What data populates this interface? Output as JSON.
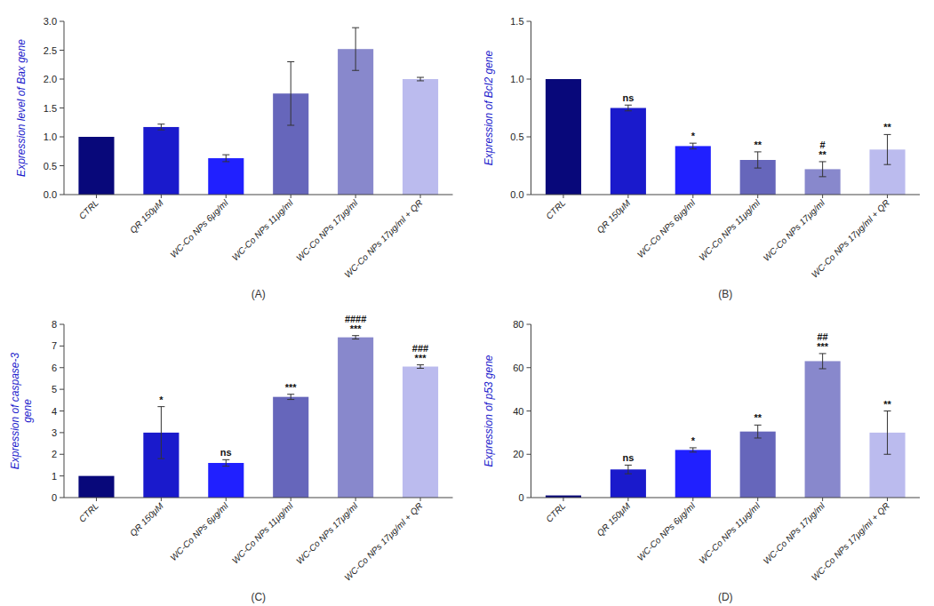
{
  "chart_data": [
    {
      "type": "bar",
      "categories": [
        "CTRL",
        "QR 150μM",
        "WC-Co NPs 6μg/ml",
        "WC-Co NPs 11μg/ml",
        "WC-Co NPs 17μg/ml",
        "WC-Co NPs 17μg/ml + QR"
      ],
      "values": [
        1.0,
        1.17,
        0.63,
        1.75,
        2.52,
        2.0
      ],
      "errors": [
        0.0,
        0.05,
        0.06,
        0.55,
        0.37,
        0.03
      ],
      "colors": [
        "#08087A",
        "#1A1ACC",
        "#2020FF",
        "#6666BB",
        "#8888CC",
        "#BBBBEE"
      ],
      "ylabel": "Expression level of Bax gene",
      "xlabel": "(A)",
      "ylim": [
        0,
        3.0
      ],
      "yticks": [
        {
          "value": 0,
          "label": "0.0"
        },
        0.5,
        {
          "value": 1,
          "label": "1.0"
        },
        1.5,
        {
          "value": 2,
          "label": "2.0"
        },
        2.5,
        {
          "value": 3,
          "label": "3.0"
        }
      ],
      "grid": false
    },
    {
      "type": "bar",
      "categories": [
        "CTRL",
        "QR 150μM",
        "WC-Co NPs 6μg/ml",
        "WC-Co NPs 11μg/ml",
        "WC-Co NPs 17μg/ml",
        "WC-Co NPs 17μg/ml + QR"
      ],
      "values": [
        1.0,
        0.75,
        0.42,
        0.3,
        0.22,
        0.39
      ],
      "errors": [
        0.0,
        0.025,
        0.025,
        0.07,
        0.065,
        0.13
      ],
      "colors": [
        "#08087A",
        "#1A1ACC",
        "#2020FF",
        "#6666BB",
        "#8888CC",
        "#BBBBEE"
      ],
      "ylabel": "Expression of Bcl2 gene",
      "xlabel": "(B)",
      "ylim": [
        0,
        1.5
      ],
      "yticks": [
        {
          "value": 0,
          "label": "0.0"
        },
        0.5,
        {
          "value": 1,
          "label": "1.0"
        },
        1.5
      ],
      "annotations": [
        null,
        "ns",
        "*",
        "**",
        "#\n**",
        "**"
      ],
      "grid": false
    },
    {
      "type": "bar",
      "categories": [
        "CTRL",
        "QR 150μM",
        "WC-Co NPs 6μg/ml",
        "WC-Co NPs 11μg/ml",
        "WC-Co NPs 17μg/ml",
        "WC-Co NPs 17μg/ml + QR"
      ],
      "values": [
        1.0,
        3.0,
        1.6,
        4.65,
        7.4,
        6.05
      ],
      "errors": [
        0.0,
        1.2,
        0.15,
        0.12,
        0.08,
        0.08
      ],
      "colors": [
        "#08087A",
        "#1A1ACC",
        "#2020FF",
        "#6666BB",
        "#8888CC",
        "#BBBBEE"
      ],
      "ylabel": "Expression of caspase-3\ngene",
      "xlabel": "(C)",
      "ylim": [
        0,
        8
      ],
      "yticks": [
        0,
        1,
        2,
        3,
        4,
        5,
        6,
        7,
        8
      ],
      "annotations": [
        null,
        "*",
        "ns",
        "***",
        "####\n***",
        "###\n***"
      ],
      "grid": false
    },
    {
      "type": "bar",
      "categories": [
        "CTRL",
        "QR 150μM",
        "WC-Co NPs 6μg/ml",
        "WC-Co NPs 11μg/ml",
        "WC-Co NPs 17μg/ml",
        "WC-Co NPs 17μg/ml + QR"
      ],
      "values": [
        1.0,
        13.0,
        22.0,
        30.5,
        63.0,
        30.0
      ],
      "errors": [
        0.0,
        2.0,
        1.0,
        3.0,
        3.5,
        10.0
      ],
      "colors": [
        "#08087A",
        "#1A1ACC",
        "#2020FF",
        "#6666BB",
        "#8888CC",
        "#BBBBEE"
      ],
      "ylabel": "Expression of p53 gene",
      "xlabel": "(D)",
      "ylim": [
        0,
        80
      ],
      "yticks": [
        0,
        20,
        40,
        60,
        80
      ],
      "annotations": [
        null,
        "ns",
        "*",
        "**",
        "##\n***",
        "**"
      ],
      "grid": false
    }
  ]
}
